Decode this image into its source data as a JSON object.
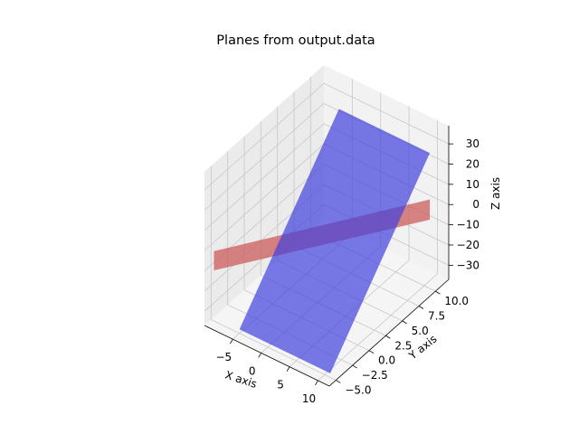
{
  "chart_data": {
    "type": "surface3d",
    "title": "Planes from output.data",
    "xlabel": "X axis",
    "ylabel": "Y axis",
    "zlabel": "Z axis",
    "xlim": [
      -10,
      12
    ],
    "ylim": [
      -6,
      12
    ],
    "zlim": [
      -37,
      39
    ],
    "xticks": [
      -5,
      0,
      5,
      10
    ],
    "yticks": [
      -5.0,
      -2.5,
      0.0,
      2.5,
      5.0,
      7.5,
      10.0
    ],
    "zticks": [
      -30,
      -20,
      -10,
      0,
      10,
      20,
      30
    ],
    "xtick_labels": [
      "−5",
      "0",
      "5",
      "10"
    ],
    "ytick_labels": [
      "−5.0",
      "−2.5",
      "0.0",
      "2.5",
      "5.0",
      "7.5",
      "10.0"
    ],
    "ztick_labels": [
      "−30",
      "−20",
      "−10",
      "0",
      "10",
      "20",
      "30"
    ],
    "grid": true,
    "series": [
      {
        "color": "#cd5c5c",
        "opacity": 0.75,
        "corners": [
          [
            -9.5,
            -5,
            -12
          ],
          [
            -9.5,
            -5,
            -2.5
          ],
          [
            11,
            10,
            7
          ],
          [
            11,
            10,
            -3
          ]
        ]
      },
      {
        "color": "#4040dd",
        "opacity": 0.7,
        "corners": [
          [
            -5,
            10,
            30
          ],
          [
            11,
            10,
            30
          ],
          [
            11,
            -5,
            -35
          ],
          [
            -5,
            -5,
            -35
          ]
        ]
      }
    ]
  }
}
